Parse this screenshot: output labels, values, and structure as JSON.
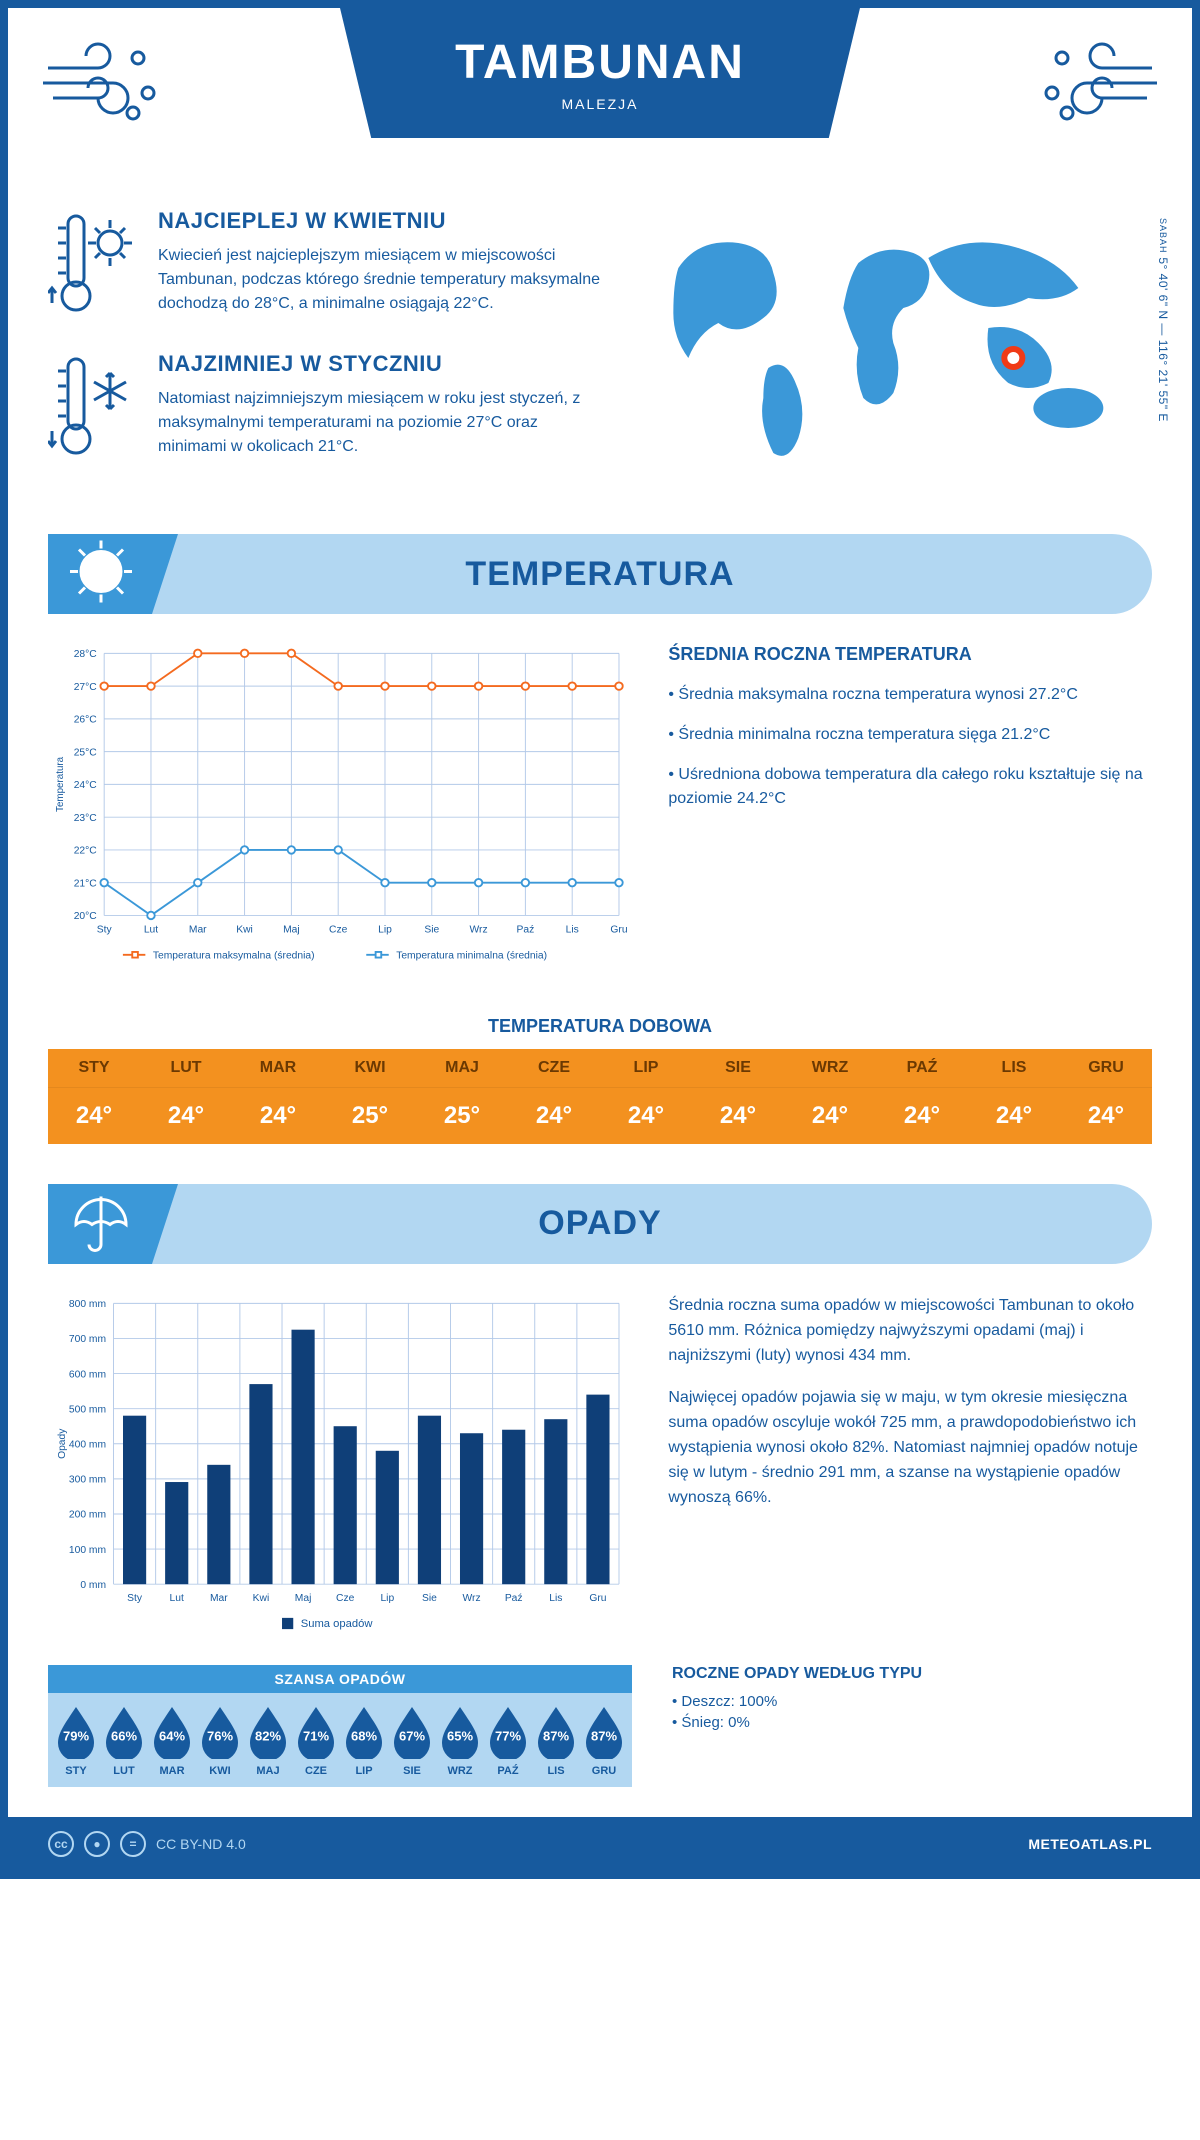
{
  "header": {
    "title": "TAMBUNAN",
    "subtitle": "MALEZJA"
  },
  "coords": {
    "line": "5° 40' 6\" N — 116° 21' 55\" E",
    "region": "SABAH"
  },
  "facts": {
    "warm": {
      "title": "NAJCIEPLEJ W KWIETNIU",
      "body": "Kwiecień jest najcieplejszym miesiącem w miejscowości Tambunan, podczas którego średnie temperatury maksymalne dochodzą do 28°C, a minimalne osiągają 22°C."
    },
    "cold": {
      "title": "NAJZIMNIEJ W STYCZNIU",
      "body": "Natomiast najzimniejszym miesiącem w roku jest styczeń, z maksymalnymi temperaturami na poziomie 27°C oraz minimami w okolicach 21°C."
    }
  },
  "months": [
    "Sty",
    "Lut",
    "Mar",
    "Kwi",
    "Maj",
    "Cze",
    "Lip",
    "Sie",
    "Wrz",
    "Paź",
    "Lis",
    "Gru"
  ],
  "months_upper": [
    "STY",
    "LUT",
    "MAR",
    "KWI",
    "MAJ",
    "CZE",
    "LIP",
    "SIE",
    "WRZ",
    "PAŹ",
    "LIS",
    "GRU"
  ],
  "temp_section": {
    "title": "TEMPERATURA",
    "chart": {
      "type": "line",
      "y_label": "Temperatura",
      "ylim": [
        20,
        28
      ],
      "ytick_step": 1,
      "y_suffix": "°C",
      "grid_color": "#b3c9e8",
      "background": "#ffffff",
      "series": [
        {
          "name": "Temperatura maksymalna (średnia)",
          "color": "#f46a1f",
          "values": [
            27,
            27,
            28,
            28,
            28,
            27,
            27,
            27,
            27,
            27,
            27,
            27
          ]
        },
        {
          "name": "Temperatura minimalna (średnia)",
          "color": "#3b98d8",
          "values": [
            21,
            20,
            21,
            22,
            22,
            22,
            21,
            21,
            21,
            21,
            21,
            21
          ]
        }
      ],
      "line_width": 2,
      "marker": "circle",
      "marker_size": 4,
      "label_fontsize": 11
    },
    "avg": {
      "title": "ŚREDNIA ROCZNA TEMPERATURA",
      "b1": "• Średnia maksymalna roczna temperatura wynosi 27.2°C",
      "b2": "• Średnia minimalna roczna temperatura sięga 21.2°C",
      "b3": "• Uśredniona dobowa temperatura dla całego roku kształtuje się na poziomie 24.2°C"
    },
    "daily": {
      "title": "TEMPERATURA DOBOWA",
      "values": [
        "24°",
        "24°",
        "24°",
        "25°",
        "25°",
        "24°",
        "24°",
        "24°",
        "24°",
        "24°",
        "24°",
        "24°"
      ],
      "head_bg": "#f3911f",
      "body_bg": "#f3911f",
      "head_text": "#6b3902",
      "body_text": "#ffffff"
    }
  },
  "precip_section": {
    "title": "OPADY",
    "chart": {
      "type": "bar",
      "y_label": "Opady",
      "ylim": [
        0,
        800
      ],
      "ytick_step": 100,
      "y_suffix": " mm",
      "bar_color": "#0f3f78",
      "grid_color": "#b3c9e8",
      "background": "#ffffff",
      "bar_width": 0.55,
      "values": [
        480,
        291,
        340,
        570,
        725,
        450,
        380,
        480,
        430,
        440,
        470,
        540
      ],
      "legend_label": "Suma opadów",
      "label_fontsize": 11
    },
    "text": {
      "p1": "Średnia roczna suma opadów w miejscowości Tambunan to około 5610 mm. Różnica pomiędzy najwyższymi opadami (maj) i najniższymi (luty) wynosi 434 mm.",
      "p2": "Najwięcej opadów pojawia się w maju, w tym okresie miesięczna suma opadów oscyluje wokół 725 mm, a prawdopodobieństwo ich wystąpienia wynosi około 82%. Natomiast najmniej opadów notuje się w lutym - średnio 291 mm, a szanse na wystąpienie opadów wynoszą 66%."
    },
    "chance": {
      "title": "SZANSA OPADÓW",
      "values": [
        "79%",
        "66%",
        "64%",
        "76%",
        "82%",
        "71%",
        "68%",
        "67%",
        "65%",
        "77%",
        "87%",
        "87%"
      ],
      "drop_color": "#175a9e",
      "panel_bg": "#b2d7f2",
      "head_bg": "#3b98d8"
    },
    "by_type": {
      "title": "ROCZNE OPADY WEDŁUG TYPU",
      "rain": "• Deszcz: 100%",
      "snow": "• Śnieg: 0%"
    }
  },
  "footer": {
    "license": "CC BY-ND 4.0",
    "brand": "METEOATLAS.PL"
  },
  "colors": {
    "primary": "#175a9e",
    "light": "#b2d7f2",
    "mid": "#3b98d8",
    "orange": "#f3911f"
  }
}
